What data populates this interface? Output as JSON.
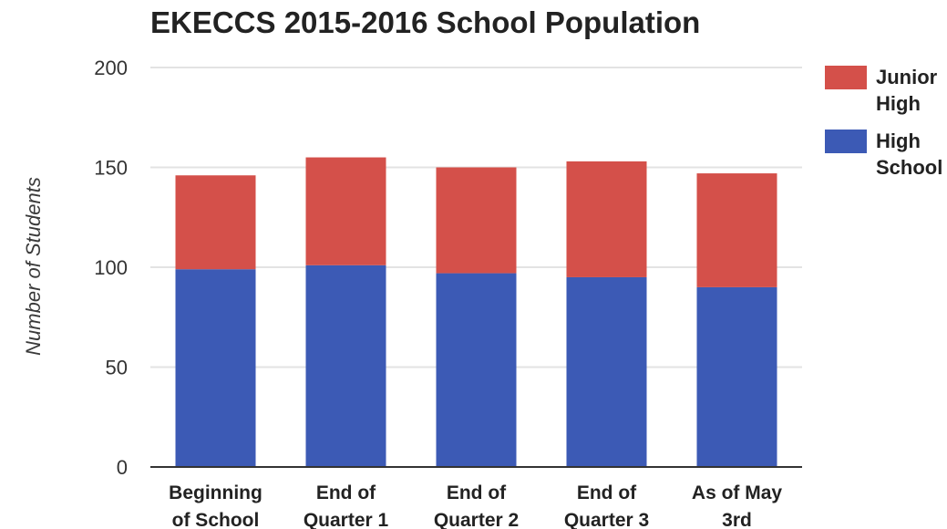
{
  "chart_data": {
    "type": "bar",
    "stacked": true,
    "title": "EKECCS 2015-2016 School Population",
    "xlabel": "",
    "ylabel": "Number of Students",
    "categories": [
      [
        "Beginning",
        "of School"
      ],
      [
        "End of",
        "Quarter 1"
      ],
      [
        "End of",
        "Quarter 2"
      ],
      [
        "End of",
        "Quarter 3"
      ],
      [
        "As of May",
        "3rd"
      ]
    ],
    "series": [
      {
        "name": [
          "High",
          "School"
        ],
        "color": "#3c5ab5",
        "values": [
          99,
          101,
          97,
          95,
          90
        ]
      },
      {
        "name": [
          "Junior",
          "High"
        ],
        "color": "#d4504a",
        "values": [
          47,
          54,
          53,
          58,
          57
        ]
      }
    ],
    "ylim": [
      0,
      200
    ],
    "yticks": [
      "0",
      "50",
      "100",
      "150",
      "200"
    ],
    "grid": true,
    "legend_position": "right"
  }
}
